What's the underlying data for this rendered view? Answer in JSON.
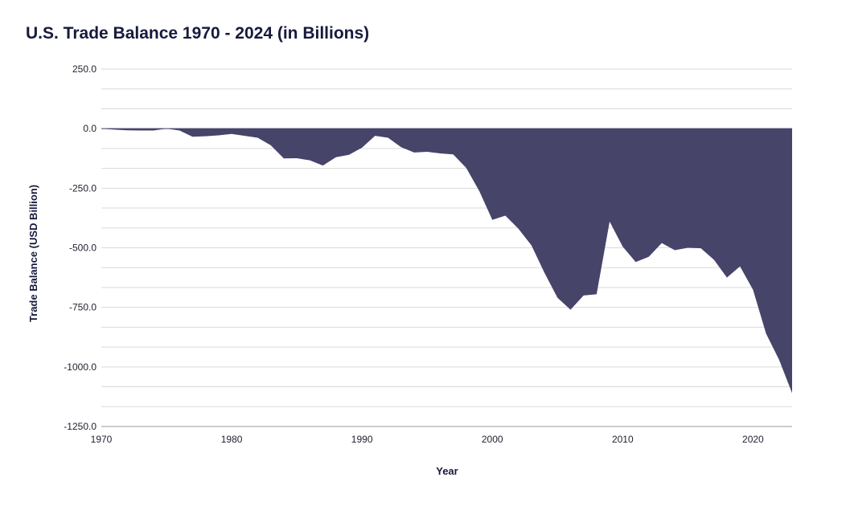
{
  "chart_data": {
    "type": "area",
    "title": "U.S. Trade Balance 1970 - 2024 (in Billions)",
    "xlabel": "Year",
    "ylabel": "Trade Balance (USD Billion)",
    "xlim": [
      1970,
      2023
    ],
    "ylim": [
      -1250,
      250
    ],
    "y_ticks": [
      250,
      0,
      -250,
      -500,
      -750,
      -1000,
      -1250
    ],
    "y_tick_labels": [
      "250.0",
      "0.0",
      "-250.0",
      "-500.0",
      "-750.0",
      "-1000.0",
      "-1250.0"
    ],
    "x_ticks": [
      1970,
      1980,
      1990,
      2000,
      2010,
      2020
    ],
    "x_tick_labels": [
      "1970",
      "1980",
      "1990",
      "2000",
      "2010",
      "2020"
    ],
    "grid": true,
    "color": "#47446a",
    "series": [
      {
        "x": [
          1970,
          1971,
          1972,
          1973,
          1974,
          1975,
          1976,
          1977,
          1978,
          1979,
          1980,
          1981,
          1982,
          1983,
          1984,
          1985,
          1986,
          1987,
          1988,
          1989,
          1990,
          1991,
          1992,
          1993,
          1994,
          1995,
          1996,
          1997,
          1998,
          1999,
          2000,
          2001,
          2002,
          2003,
          2004,
          2005,
          2006,
          2007,
          2008,
          2009,
          2010,
          2011,
          2012,
          2013,
          2014,
          2015,
          2016,
          2017,
          2018,
          2019,
          2020,
          2021,
          2022,
          2023
        ],
        "values": [
          0,
          -4,
          -7,
          -8,
          -8,
          0,
          -8,
          -34,
          -32,
          -28,
          -22,
          -30,
          -38,
          -70,
          -125,
          -124,
          -133,
          -155,
          -120,
          -110,
          -80,
          -30,
          -38,
          -78,
          -100,
          -97,
          -104,
          -108,
          -165,
          -262,
          -383,
          -365,
          -420,
          -490,
          -605,
          -710,
          -760,
          -700,
          -695,
          -390,
          -495,
          -560,
          -538,
          -480,
          -510,
          -500,
          -502,
          -550,
          -625,
          -578,
          -676,
          -860,
          -970,
          -1110
        ]
      }
    ]
  }
}
